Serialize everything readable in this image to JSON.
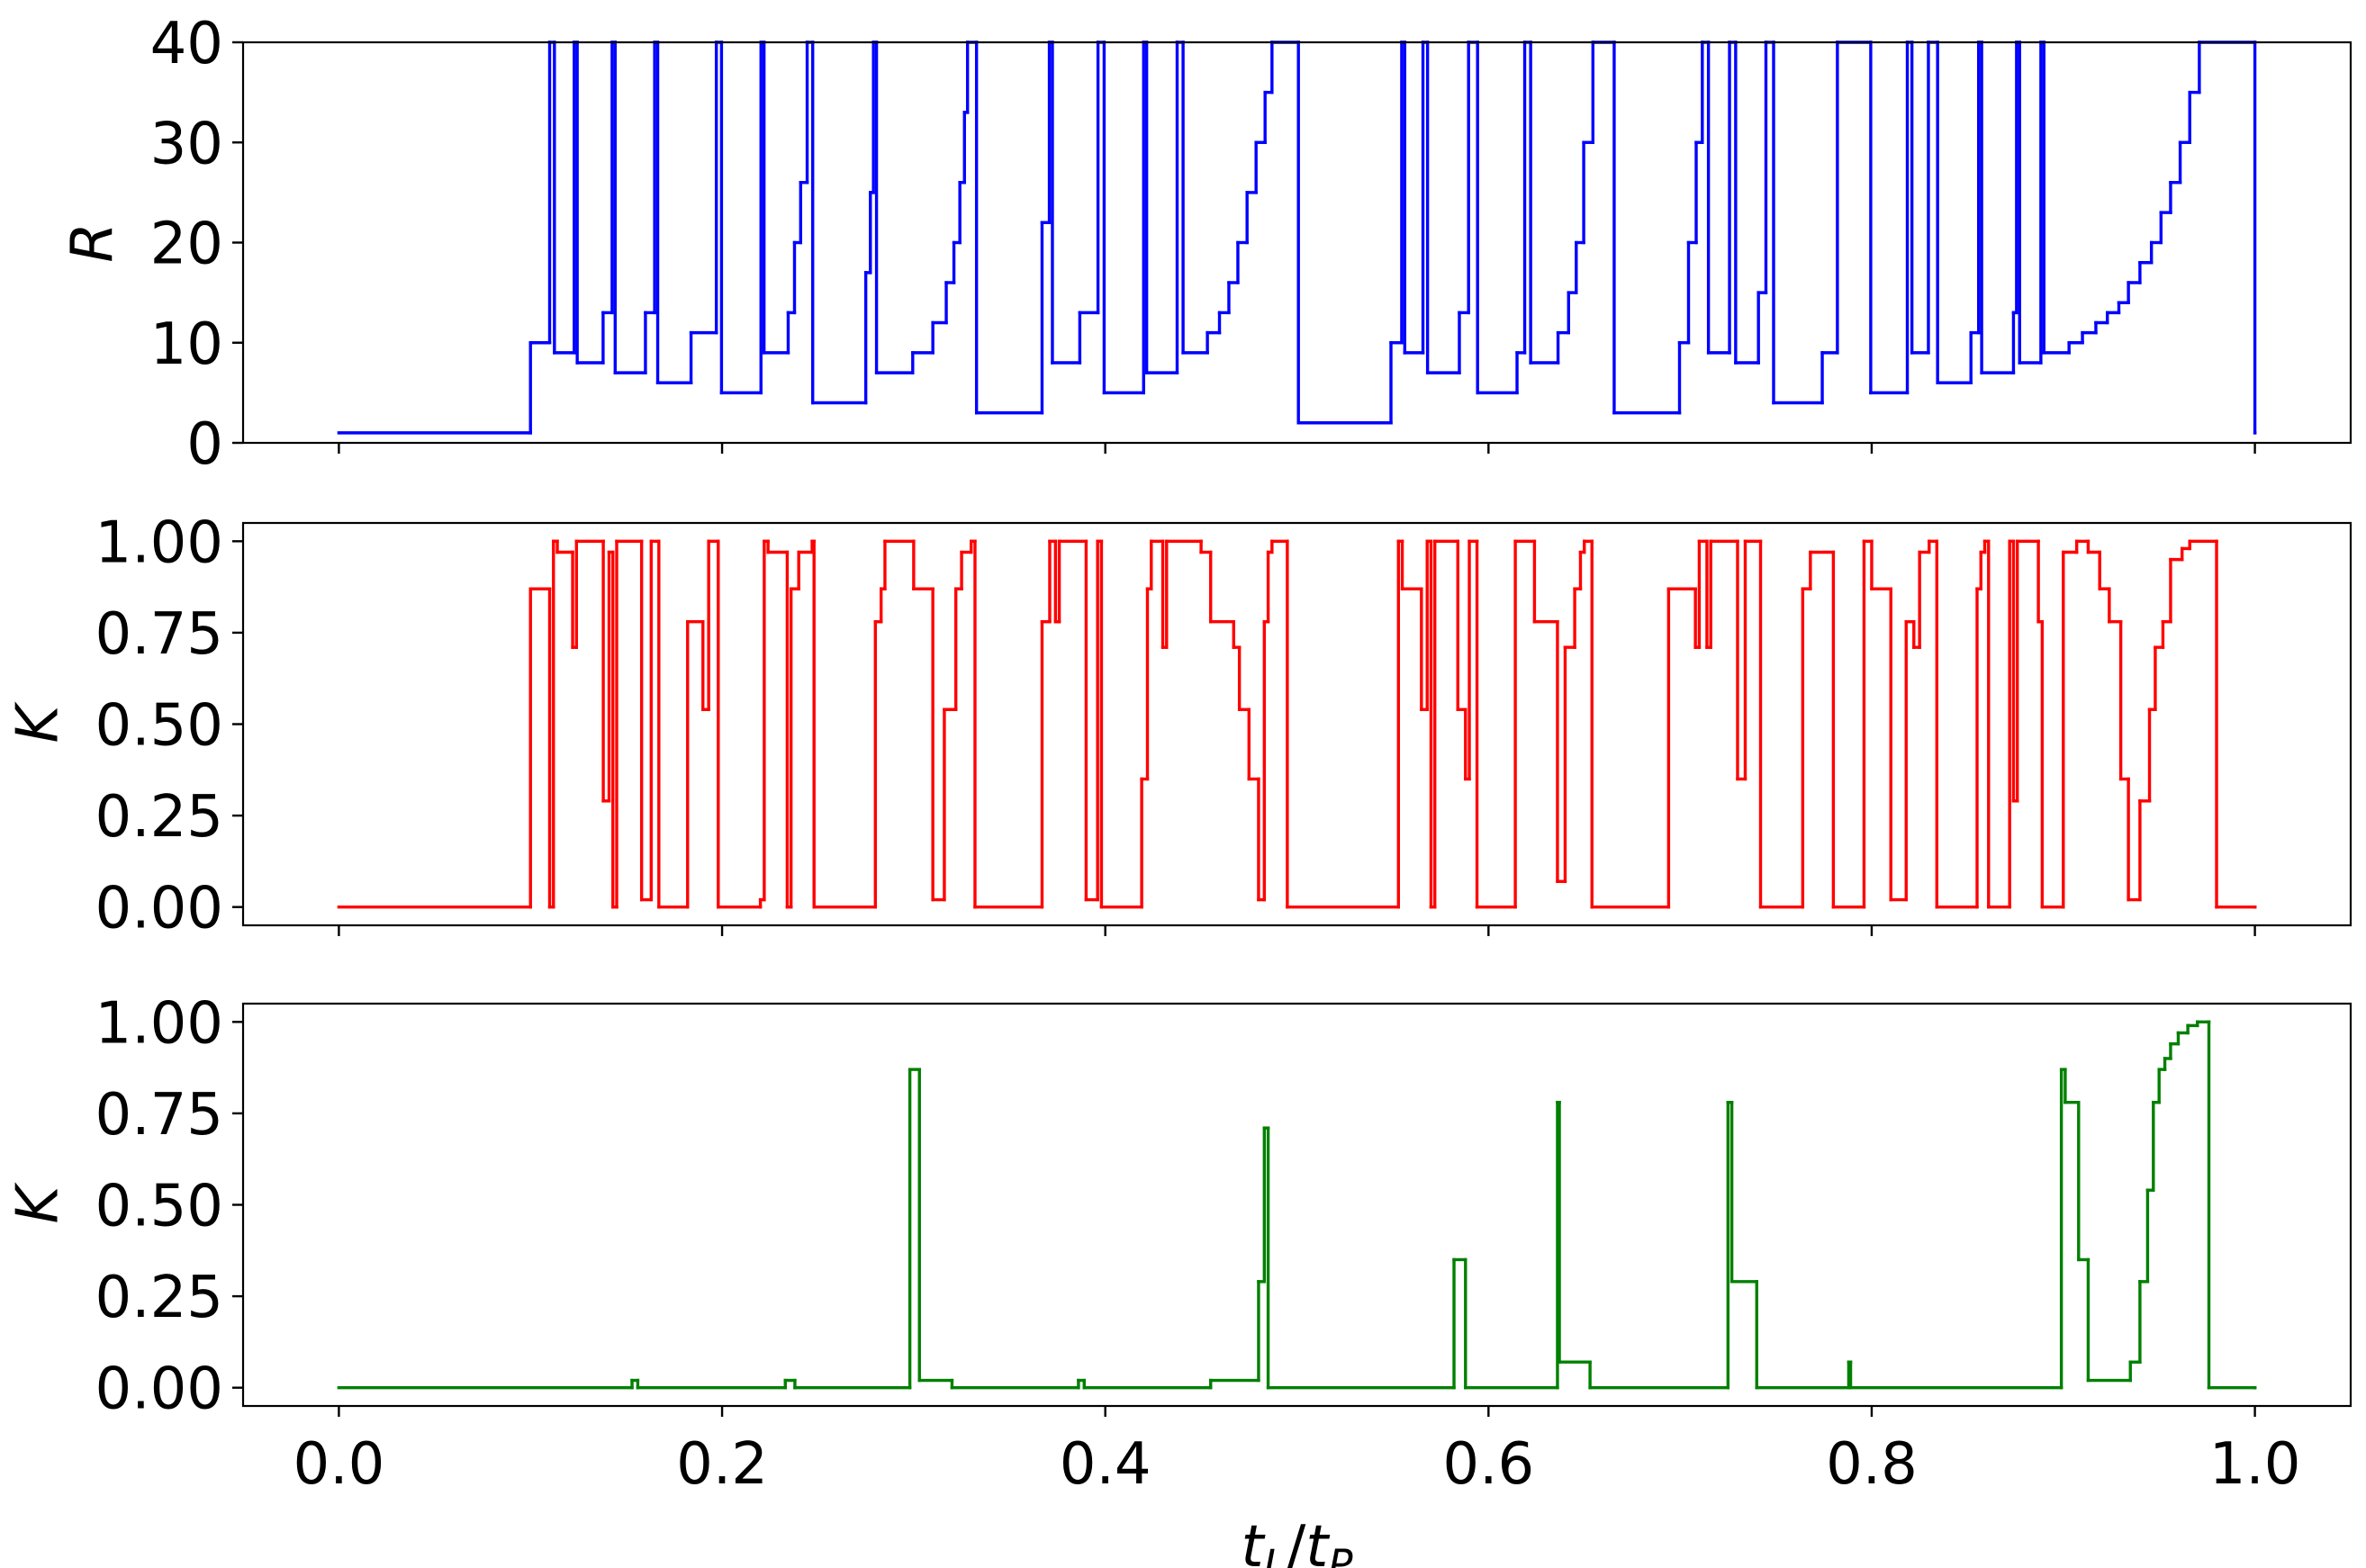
{
  "chart_data": [
    {
      "type": "line",
      "drawstyle": "steps-post",
      "ylabel": "R",
      "ylim": [
        0,
        40
      ],
      "yticks": [
        0,
        10,
        20,
        30,
        40
      ],
      "x": [
        0,
        0.1,
        0.11,
        0.1125,
        0.1228,
        0.1244,
        0.1379,
        0.1426,
        0.1442,
        0.16,
        0.1648,
        0.1664,
        0.1838,
        0.197,
        0.1997,
        0.2203,
        0.2219,
        0.2345,
        0.2378,
        0.241,
        0.2444,
        0.2473,
        0.275,
        0.2774,
        0.279,
        0.2806,
        0.2995,
        0.31,
        0.317,
        0.321,
        0.3241,
        0.3265,
        0.3281,
        0.3328,
        0.367,
        0.3708,
        0.3724,
        0.3867,
        0.3962,
        0.3994,
        0.42,
        0.4216,
        0.4375,
        0.4406,
        0.4533,
        0.4596,
        0.4645,
        0.4692,
        0.474,
        0.4787,
        0.4834,
        0.487,
        0.5008,
        0.5491,
        0.5547,
        0.5563,
        0.5658,
        0.5682,
        0.5848,
        0.5896,
        0.5943,
        0.6149,
        0.6189,
        0.622,
        0.6363,
        0.6418,
        0.6458,
        0.6497,
        0.6545,
        0.6656,
        0.6997,
        0.7044,
        0.7084,
        0.7116,
        0.7148,
        0.7258,
        0.729,
        0.7409,
        0.7448,
        0.7488,
        0.7742,
        0.7821,
        0.7995,
        0.8186,
        0.821,
        0.8296,
        0.8344,
        0.8518,
        0.8558,
        0.8574,
        0.874,
        0.8756,
        0.8772,
        0.8883,
        0.8899,
        0.903,
        0.91,
        0.917,
        0.923,
        0.929,
        0.934,
        0.94,
        0.946,
        0.951,
        0.956,
        0.961,
        0.966,
        0.971,
        1.0
      ],
      "series": [
        {
          "color": "#0000ff",
          "values": [
            1,
            10,
            40,
            9,
            40,
            8,
            13,
            40,
            7,
            13,
            40,
            6,
            11,
            40,
            5,
            40,
            9,
            13,
            20,
            26,
            40,
            4,
            17,
            25,
            40,
            7,
            9,
            12,
            16,
            20,
            26,
            33,
            40,
            3,
            22,
            40,
            8,
            13,
            40,
            5,
            40,
            7,
            40,
            9,
            11,
            13,
            16,
            20,
            25,
            30,
            35,
            40,
            2,
            10,
            40,
            9,
            40,
            7,
            13,
            40,
            5,
            9,
            40,
            8,
            11,
            15,
            20,
            30,
            40,
            3,
            10,
            20,
            30,
            40,
            9,
            40,
            8,
            15,
            40,
            4,
            9,
            40,
            5,
            40,
            9,
            40,
            6,
            11,
            40,
            7,
            13,
            40,
            8,
            40,
            9,
            10,
            11,
            12,
            13,
            14,
            16,
            18,
            20,
            23,
            26,
            30,
            35,
            40,
            1
          ]
        }
      ]
    },
    {
      "type": "line",
      "drawstyle": "steps-post",
      "ylabel": "K",
      "ylim": [
        -0.05,
        1.05
      ],
      "yticks": [
        {
          "value": 0,
          "label": "0.00"
        },
        {
          "value": 0.25,
          "label": "0.25"
        },
        {
          "value": 0.5,
          "label": "0.50"
        },
        {
          "value": 0.75,
          "label": "0.75"
        },
        {
          "value": 1,
          "label": "1.00"
        }
      ],
      "x": [
        0,
        0.1,
        0.11,
        0.112,
        0.114,
        0.122,
        0.124,
        0.138,
        0.141,
        0.143,
        0.145,
        0.158,
        0.163,
        0.167,
        0.182,
        0.19,
        0.193,
        0.198,
        0.22,
        0.222,
        0.224,
        0.234,
        0.236,
        0.24,
        0.247,
        0.248,
        0.28,
        0.283,
        0.285,
        0.3,
        0.31,
        0.316,
        0.322,
        0.325,
        0.33,
        0.332,
        0.367,
        0.371,
        0.374,
        0.376,
        0.39,
        0.396,
        0.398,
        0.419,
        0.422,
        0.424,
        0.43,
        0.432,
        0.45,
        0.455,
        0.467,
        0.47,
        0.475,
        0.48,
        0.483,
        0.485,
        0.487,
        0.495,
        0.553,
        0.555,
        0.565,
        0.568,
        0.57,
        0.572,
        0.584,
        0.588,
        0.59,
        0.594,
        0.614,
        0.624,
        0.636,
        0.64,
        0.645,
        0.648,
        0.65,
        0.654,
        0.694,
        0.708,
        0.71,
        0.714,
        0.716,
        0.73,
        0.734,
        0.742,
        0.764,
        0.768,
        0.78,
        0.796,
        0.8,
        0.81,
        0.818,
        0.822,
        0.825,
        0.83,
        0.834,
        0.855,
        0.857,
        0.859,
        0.861,
        0.872,
        0.874,
        0.876,
        0.887,
        0.889,
        0.9,
        0.907,
        0.913,
        0.919,
        0.924,
        0.93,
        0.934,
        0.94,
        0.945,
        0.948,
        0.952,
        0.956,
        0.962,
        0.966,
        0.98,
        1.0
      ],
      "series": [
        {
          "color": "#ff0000",
          "values": [
            0,
            0.87,
            0,
            1,
            0.97,
            0.71,
            1,
            0.29,
            0.97,
            0,
            1,
            0.02,
            1,
            0,
            0.78,
            0.54,
            1,
            0,
            0.02,
            1,
            0.97,
            0,
            0.87,
            0.97,
            1,
            0,
            0.78,
            0.87,
            1,
            0.87,
            0.02,
            0.54,
            0.87,
            0.97,
            1,
            0,
            0.78,
            1,
            0.78,
            1,
            0.02,
            1,
            0,
            0.35,
            0.87,
            1,
            0.71,
            1,
            0.97,
            0.78,
            0.71,
            0.54,
            0.35,
            0.02,
            0.78,
            0.97,
            1,
            0,
            1,
            0.87,
            0.54,
            1,
            0,
            1,
            0.54,
            0.35,
            1,
            0,
            1,
            0.78,
            0.07,
            0.71,
            0.87,
            0.97,
            1,
            0,
            0.87,
            0.71,
            1,
            0.71,
            1,
            0.35,
            1,
            0,
            0.87,
            0.97,
            0,
            1,
            0.87,
            0.02,
            0.78,
            0.71,
            0.97,
            1,
            0,
            0.87,
            0.97,
            1,
            0,
            1,
            0.29,
            1,
            0.78,
            0,
            0.97,
            1,
            0.97,
            0.87,
            0.78,
            0.35,
            0.02,
            0.29,
            0.54,
            0.71,
            0.78,
            0.95,
            0.98,
            1,
            0,
            0
          ]
        }
      ]
    },
    {
      "type": "line",
      "drawstyle": "steps-post",
      "ylabel": "K",
      "xlabel": [
        "t",
        "L",
        "/",
        "t",
        "P"
      ],
      "xlim": [
        -0.05,
        1.05
      ],
      "xticks": [
        {
          "value": 0,
          "label": "0.0"
        },
        {
          "value": 0.2,
          "label": "0.2"
        },
        {
          "value": 0.4,
          "label": "0.4"
        },
        {
          "value": 0.6,
          "label": "0.6"
        },
        {
          "value": 0.8,
          "label": "0.8"
        },
        {
          "value": 1,
          "label": "1.0"
        }
      ],
      "ylim": [
        -0.05,
        1.05
      ],
      "yticks": [
        {
          "value": 0,
          "label": "0.00"
        },
        {
          "value": 0.25,
          "label": "0.25"
        },
        {
          "value": 0.5,
          "label": "0.50"
        },
        {
          "value": 0.75,
          "label": "0.75"
        },
        {
          "value": 1,
          "label": "1.00"
        }
      ],
      "x": [
        0,
        0.153,
        0.156,
        0.233,
        0.238,
        0.298,
        0.303,
        0.32,
        0.386,
        0.389,
        0.455,
        0.48,
        0.483,
        0.485,
        0.582,
        0.588,
        0.636,
        0.637,
        0.653,
        0.725,
        0.727,
        0.74,
        0.788,
        0.789,
        0.899,
        0.901,
        0.908,
        0.913,
        0.935,
        0.94,
        0.944,
        0.947,
        0.95,
        0.953,
        0.956,
        0.96,
        0.965,
        0.97,
        0.976,
        1.0
      ],
      "series": [
        {
          "color": "#008000",
          "values": [
            0,
            0.02,
            0,
            0.02,
            0,
            0.87,
            0.02,
            0,
            0.02,
            0,
            0.02,
            0.29,
            0.71,
            0,
            0.35,
            0,
            0.78,
            0.07,
            0,
            0.78,
            0.29,
            0,
            0.07,
            0,
            0.87,
            0.78,
            0.35,
            0.02,
            0.07,
            0.29,
            0.54,
            0.78,
            0.87,
            0.9,
            0.94,
            0.97,
            0.99,
            1,
            0,
            0
          ]
        }
      ]
    }
  ]
}
